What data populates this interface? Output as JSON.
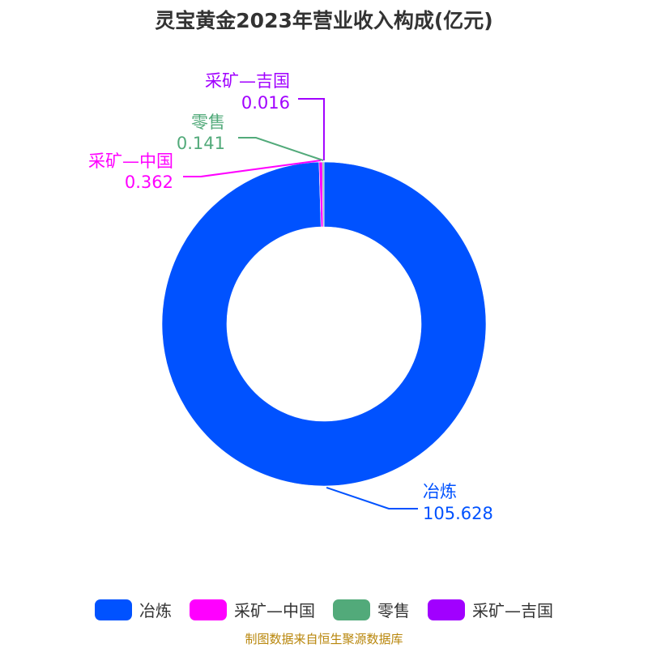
{
  "title": "灵宝黄金2023年营业收入构成(亿元)",
  "source": "制图数据来自恒生聚源数据库",
  "colors": {
    "smelting": "#0052ff",
    "mining_china": "#ff00ff",
    "retail": "#52aa7a",
    "mining_kyrgyz": "#a100ff"
  },
  "chart_data": {
    "type": "pie",
    "donut": true,
    "title": "灵宝黄金2023年营业收入构成(亿元)",
    "unit": "亿元",
    "legend_position": "bottom",
    "slices": [
      {
        "label": "冶炼",
        "value": 105.628,
        "value_label": "105.628",
        "color": "#0052ff"
      },
      {
        "label": "采矿—中国",
        "value": 0.362,
        "value_label": "0.362",
        "color": "#ff00ff"
      },
      {
        "label": "零售",
        "value": 0.141,
        "value_label": "0.141",
        "color": "#52aa7a"
      },
      {
        "label": "采矿—吉国",
        "value": 0.016,
        "value_label": "0.016",
        "color": "#a100ff"
      }
    ]
  }
}
